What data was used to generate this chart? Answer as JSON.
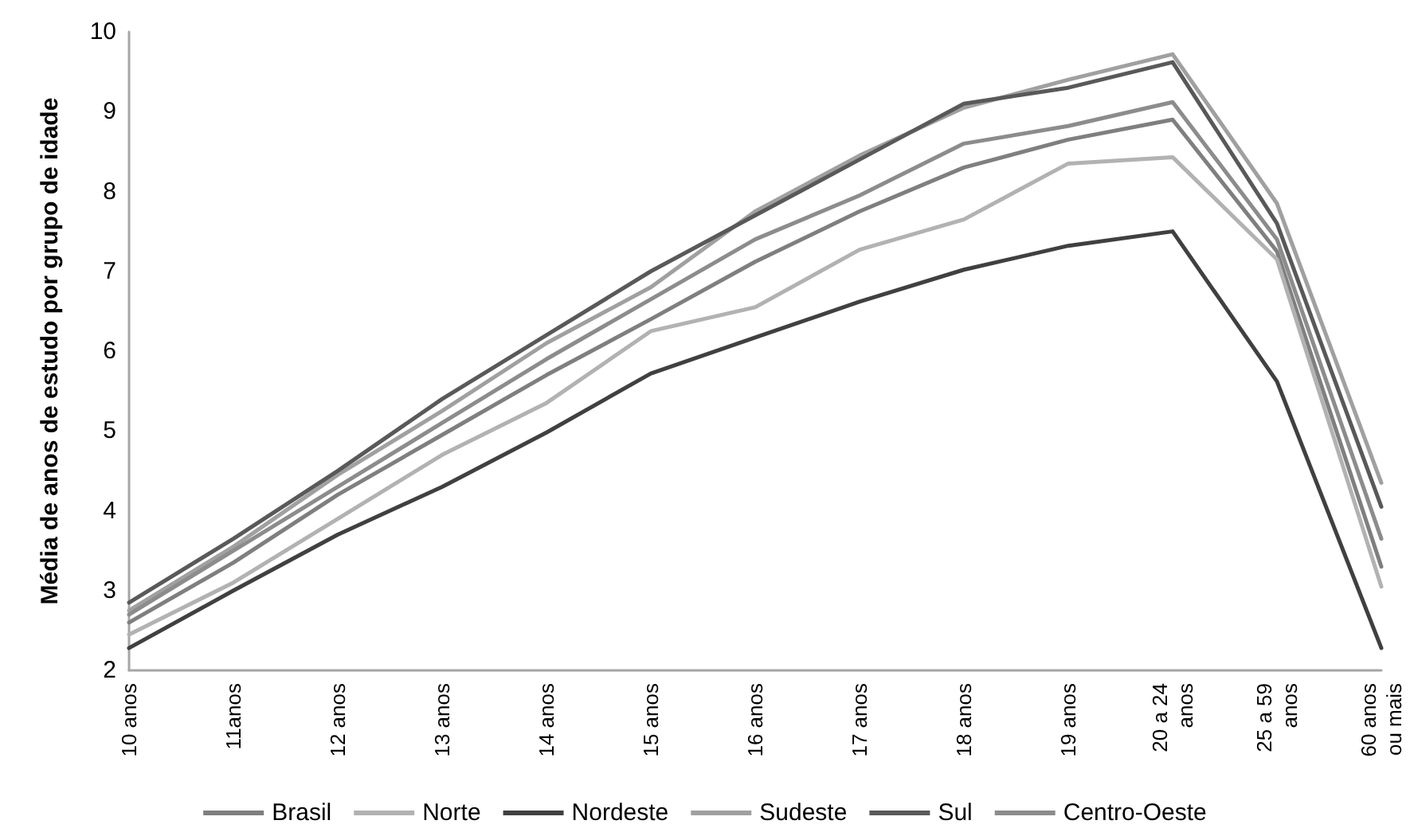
{
  "chart_data": {
    "type": "line",
    "ylabel": "Média de anos de estudo por grupo de idade",
    "categories": [
      "10 anos",
      "11anos",
      "12 anos",
      "13 anos",
      "14 anos",
      "15 anos",
      "16 anos",
      "17 anos",
      "18 anos",
      "19 anos",
      "20 a 24\nanos",
      "25 a 59\nanos",
      "60 anos\nou mais"
    ],
    "series": [
      {
        "name": "Brasil",
        "color": "#7f7f7f",
        "values": [
          2.6,
          3.35,
          4.2,
          4.95,
          5.7,
          6.4,
          7.12,
          7.75,
          8.3,
          8.65,
          8.9,
          7.25,
          3.3
        ]
      },
      {
        "name": "Norte",
        "color": "#b2b2b2",
        "values": [
          2.45,
          3.1,
          3.9,
          4.7,
          5.35,
          6.25,
          6.55,
          7.27,
          7.65,
          8.35,
          8.43,
          7.15,
          3.05
        ]
      },
      {
        "name": "Nordeste",
        "color": "#404040",
        "values": [
          2.28,
          3.0,
          3.7,
          4.3,
          4.98,
          5.72,
          6.17,
          6.62,
          7.02,
          7.32,
          7.5,
          5.62,
          2.28
        ]
      },
      {
        "name": "Sudeste",
        "color": "#a0a0a0",
        "values": [
          2.75,
          3.55,
          4.45,
          5.25,
          6.1,
          6.8,
          7.75,
          8.45,
          9.05,
          9.4,
          9.72,
          7.85,
          4.35
        ]
      },
      {
        "name": "Sul",
        "color": "#595959",
        "values": [
          2.85,
          3.65,
          4.5,
          5.4,
          6.2,
          7.0,
          7.7,
          8.4,
          9.1,
          9.3,
          9.62,
          7.6,
          4.05
        ]
      },
      {
        "name": "Centro-Oeste",
        "color": "#8c8c8c",
        "values": [
          2.7,
          3.5,
          4.3,
          5.1,
          5.9,
          6.65,
          7.4,
          7.95,
          8.6,
          8.82,
          9.12,
          7.4,
          3.65
        ]
      }
    ],
    "ylim": [
      2,
      10
    ],
    "yticks": [
      2,
      3,
      4,
      5,
      6,
      7,
      8,
      9,
      10
    ],
    "grid": false,
    "legend": "bottom",
    "marker": "none",
    "line_style": "solid"
  }
}
